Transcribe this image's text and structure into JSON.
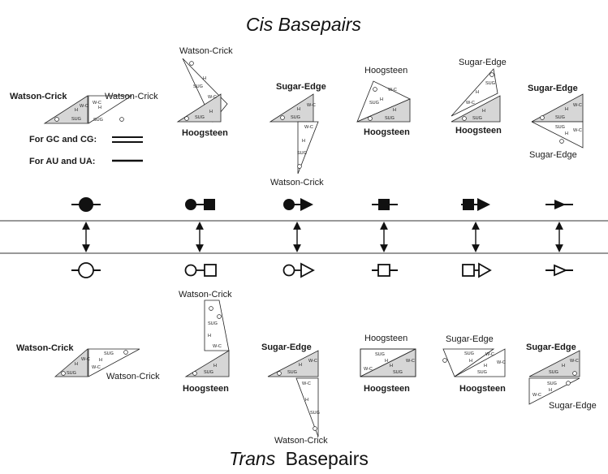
{
  "titles": {
    "cis_italic": "Cis Basepairs",
    "trans_italic": "Trans",
    "trans_rest": "Basepairs"
  },
  "legend": {
    "gc_cg": "For GC and CG:",
    "au_ua": "For AU and UA:"
  },
  "edges": {
    "wc": "Watson-Crick",
    "hoog": "Hoogsteen",
    "sugar": "Sugar-Edge"
  },
  "tri": {
    "sug": "SUG",
    "h": "H",
    "wc": "W-C"
  },
  "cis_labels": {
    "c1_left": "Watson-Crick",
    "c1_right": "Watson-Crick",
    "c2_top": "Watson-Crick",
    "c2_bottom": "Hoogsteen",
    "c3_top": "Sugar-Edge",
    "c3_bottom": "Watson-Crick",
    "c4_top": "Hoogsteen",
    "c4_bottom": "Hoogsteen",
    "c5_top": "Sugar-Edge",
    "c5_bottom": "Hoogsteen",
    "c6_top": "Sugar-Edge",
    "c6_bottom": "Sugar-Edge"
  },
  "trans_labels": {
    "t1_left": "Watson-Crick",
    "t1_right": "Watson-Crick",
    "t2_top": "Watson-Crick",
    "t2_bottom": "Hoogsteen",
    "t3_top": "Sugar-Edge",
    "t3_bottom": "Watson-Crick",
    "t4_top": "Hoogsteen",
    "t4_bottom": "Hoogsteen",
    "t5_top": "Sugar-Edge",
    "t5_bottom": "Hoogsteen",
    "t6_top": "Sugar-Edge",
    "t6_bottom": "Sugar-Edge"
  },
  "symbols": {
    "shapes": [
      "circle-circle",
      "circle-square",
      "circle-triangle",
      "square-square",
      "square-triangle",
      "triangle-triangle"
    ],
    "cis_fill": "filled",
    "trans_fill": "open"
  },
  "colors": {
    "shade": "#d6d6d6",
    "ink": "#111111"
  }
}
